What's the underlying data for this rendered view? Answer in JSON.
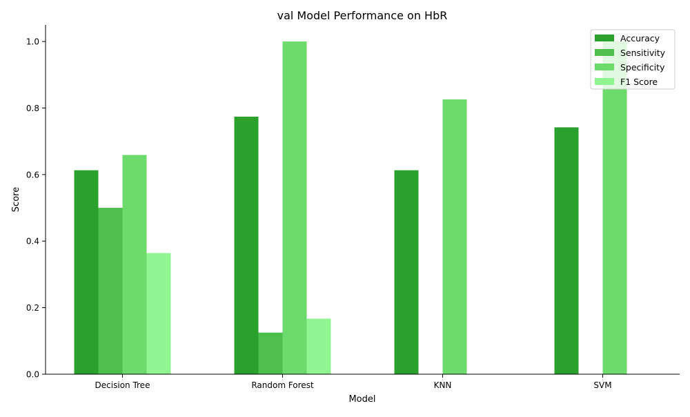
{
  "chart_data": {
    "type": "bar",
    "title": "val Model Performance on HbR",
    "xlabel": "Model",
    "ylabel": "Score",
    "categories": [
      "Decision Tree",
      "Random Forest",
      "KNN",
      "SVM"
    ],
    "series": [
      {
        "name": "Accuracy",
        "color": "#2ca02c",
        "values": [
          0.613,
          0.774,
          0.613,
          0.742
        ]
      },
      {
        "name": "Sensitivity",
        "color": "#4cbf4c",
        "values": [
          0.5,
          0.125,
          0.0,
          0.0
        ]
      },
      {
        "name": "Specificity",
        "color": "#6cdb6c",
        "values": [
          0.659,
          1.0,
          0.826,
          1.0
        ]
      },
      {
        "name": "F1 Score",
        "color": "#90f590",
        "values": [
          0.364,
          0.167,
          0.0,
          0.0
        ]
      }
    ],
    "ylim": [
      0,
      1.05
    ],
    "yticks": [
      "0.0",
      "0.2",
      "0.4",
      "0.6",
      "0.8",
      "1.0"
    ],
    "legend_position": "top-right",
    "grid": false
  }
}
